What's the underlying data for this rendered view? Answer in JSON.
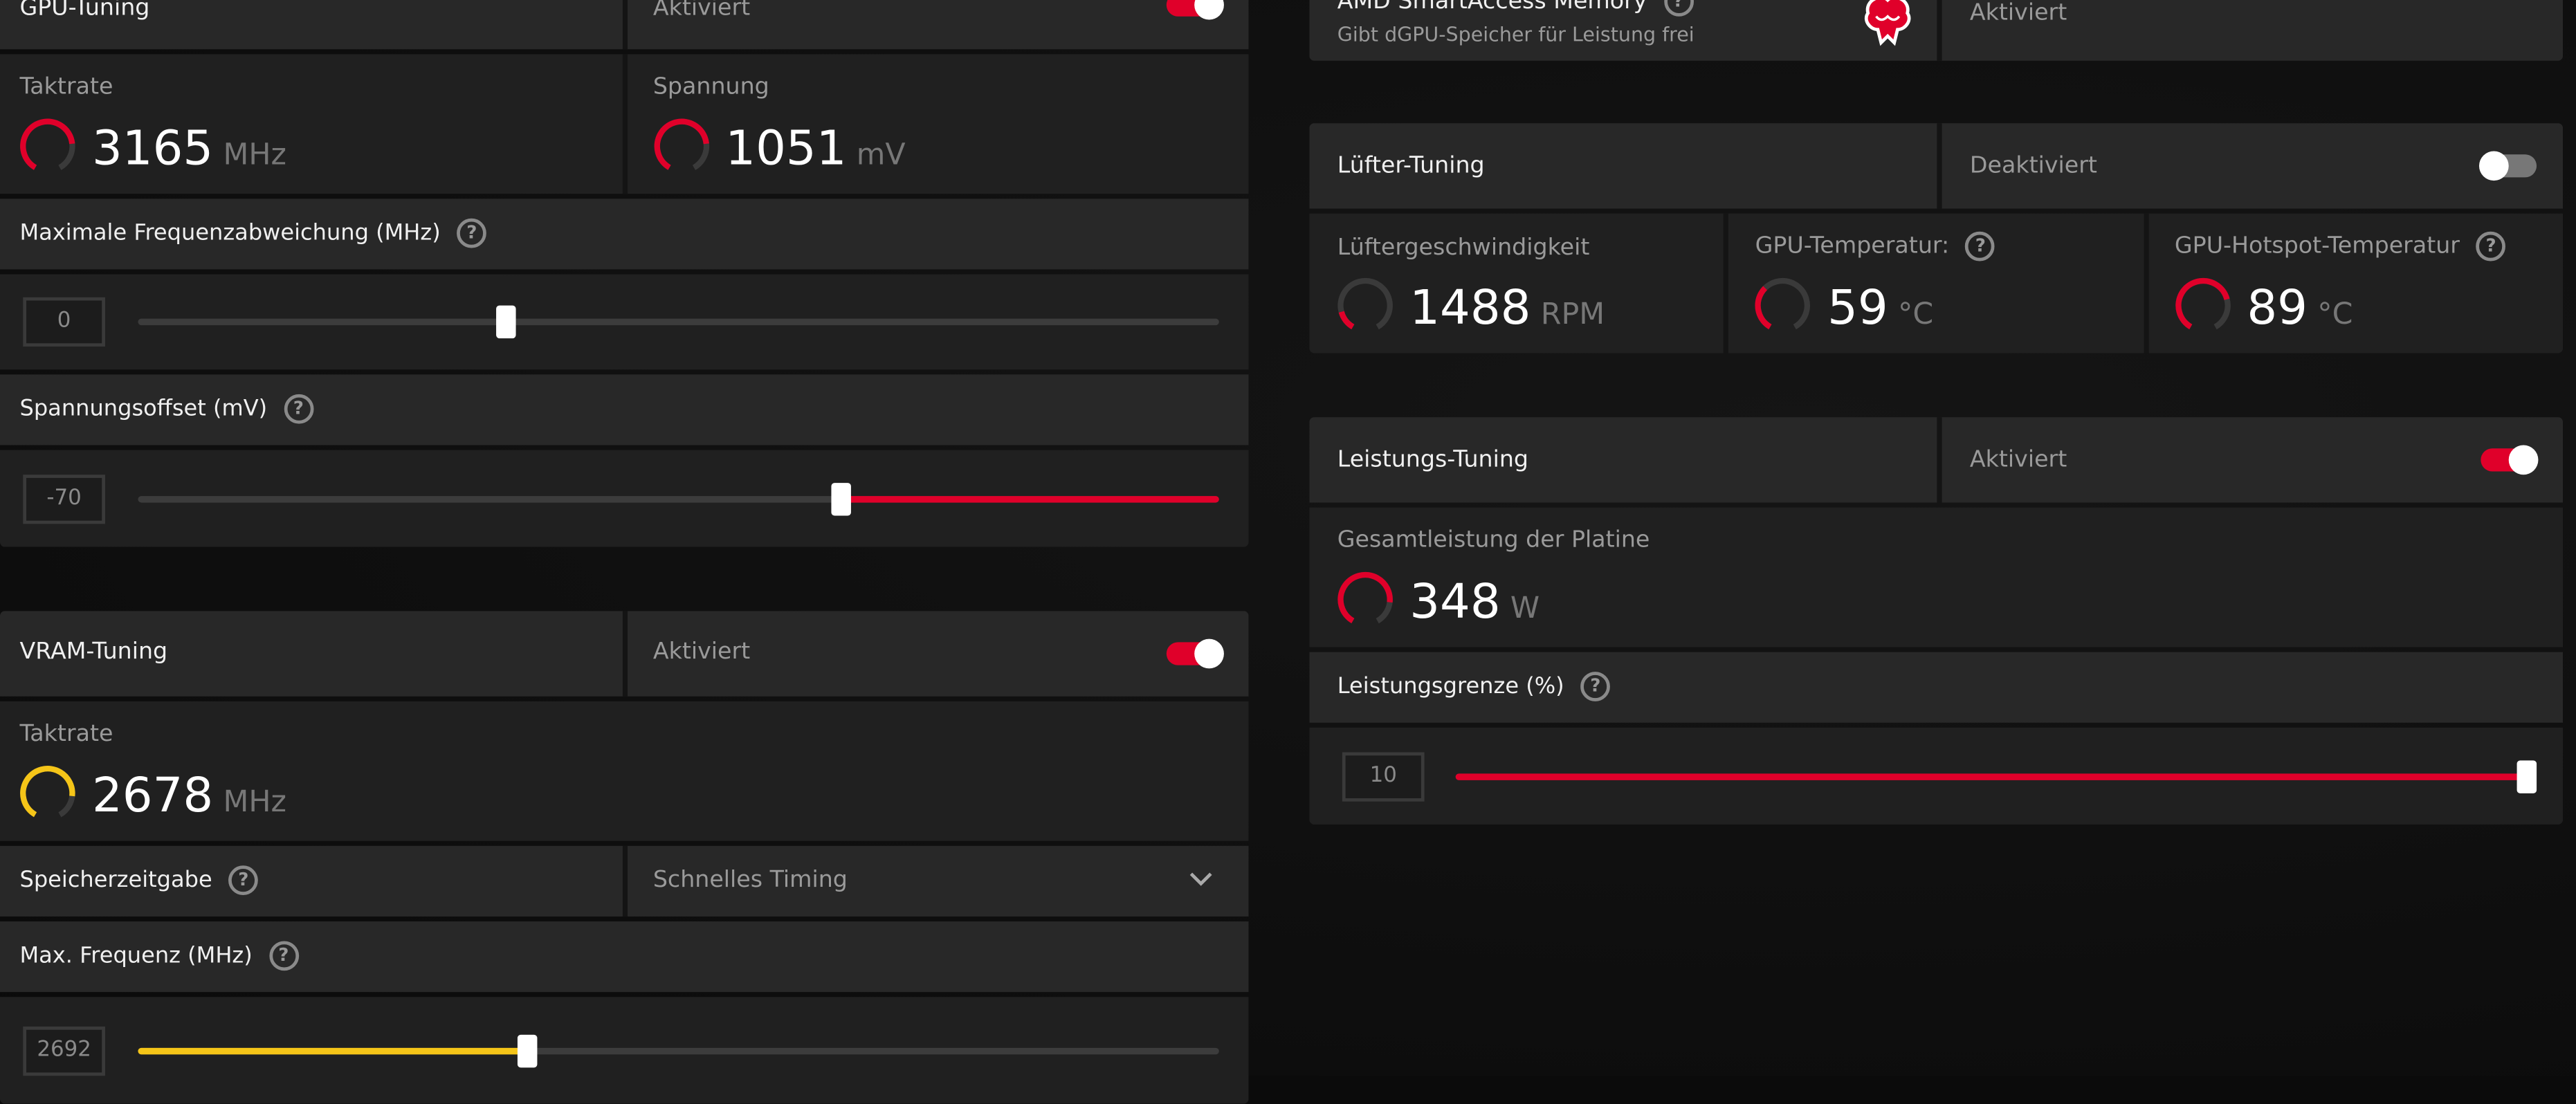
{
  "colors": {
    "accent": "#e0002a",
    "vram": "#f5c518",
    "track": "#3c3c3c"
  },
  "gpu": {
    "title": "GPU-Tuning",
    "status": "Aktiviert",
    "enabled": true,
    "clock": {
      "label": "Taktrate",
      "value": "3165",
      "unit": "MHz",
      "gauge": 0.78
    },
    "voltage": {
      "label": "Spannung",
      "value": "1051",
      "unit": "mV",
      "gauge": 0.78
    },
    "freq_offset": {
      "label": "Maximale Frequenzabweichung (MHz)",
      "value": "0",
      "fraction": 0.34
    },
    "volt_offset": {
      "label": "Spannungsoffset (mV)",
      "value": "-70",
      "fraction": 0.65
    }
  },
  "vram": {
    "title": "VRAM-Tuning",
    "status": "Aktiviert",
    "enabled": true,
    "clock": {
      "label": "Taktrate",
      "value": "2678",
      "unit": "MHz",
      "gauge": 0.82
    },
    "timing": {
      "label": "Speicherzeitgabe",
      "selected": "Schnelles Timing"
    },
    "max_freq": {
      "label": "Max. Frequenz (MHz)",
      "value": "2692",
      "fraction": 0.36
    }
  },
  "sam": {
    "title": "AMD SmartAccess Memory",
    "subtitle": "Gibt dGPU-Speicher für Leistung frei",
    "status": "Aktiviert",
    "icon": "brain-icon"
  },
  "fan": {
    "title": "Lüfter-Tuning",
    "status": "Deaktiviert",
    "enabled": false,
    "speed": {
      "label": "Lüftergeschwindigkeit",
      "value": "1488",
      "unit": "RPM",
      "gauge": 0.15
    },
    "temp": {
      "label": "GPU-Temperatur:",
      "value": "59",
      "unit": "°C",
      "gauge": 0.35
    },
    "hotspot": {
      "label": "GPU-Hotspot-Temperatur",
      "value": "89",
      "unit": "°C",
      "gauge": 0.75
    }
  },
  "power": {
    "title": "Leistungs-Tuning",
    "status": "Aktiviert",
    "enabled": true,
    "board": {
      "label": "Gesamtleistung der Platine",
      "value": "348",
      "unit": "W",
      "gauge": 0.82
    },
    "limit": {
      "label": "Leistungsgrenze (%)",
      "value": "10",
      "fraction": 1.0
    }
  },
  "help_glyph": "?"
}
